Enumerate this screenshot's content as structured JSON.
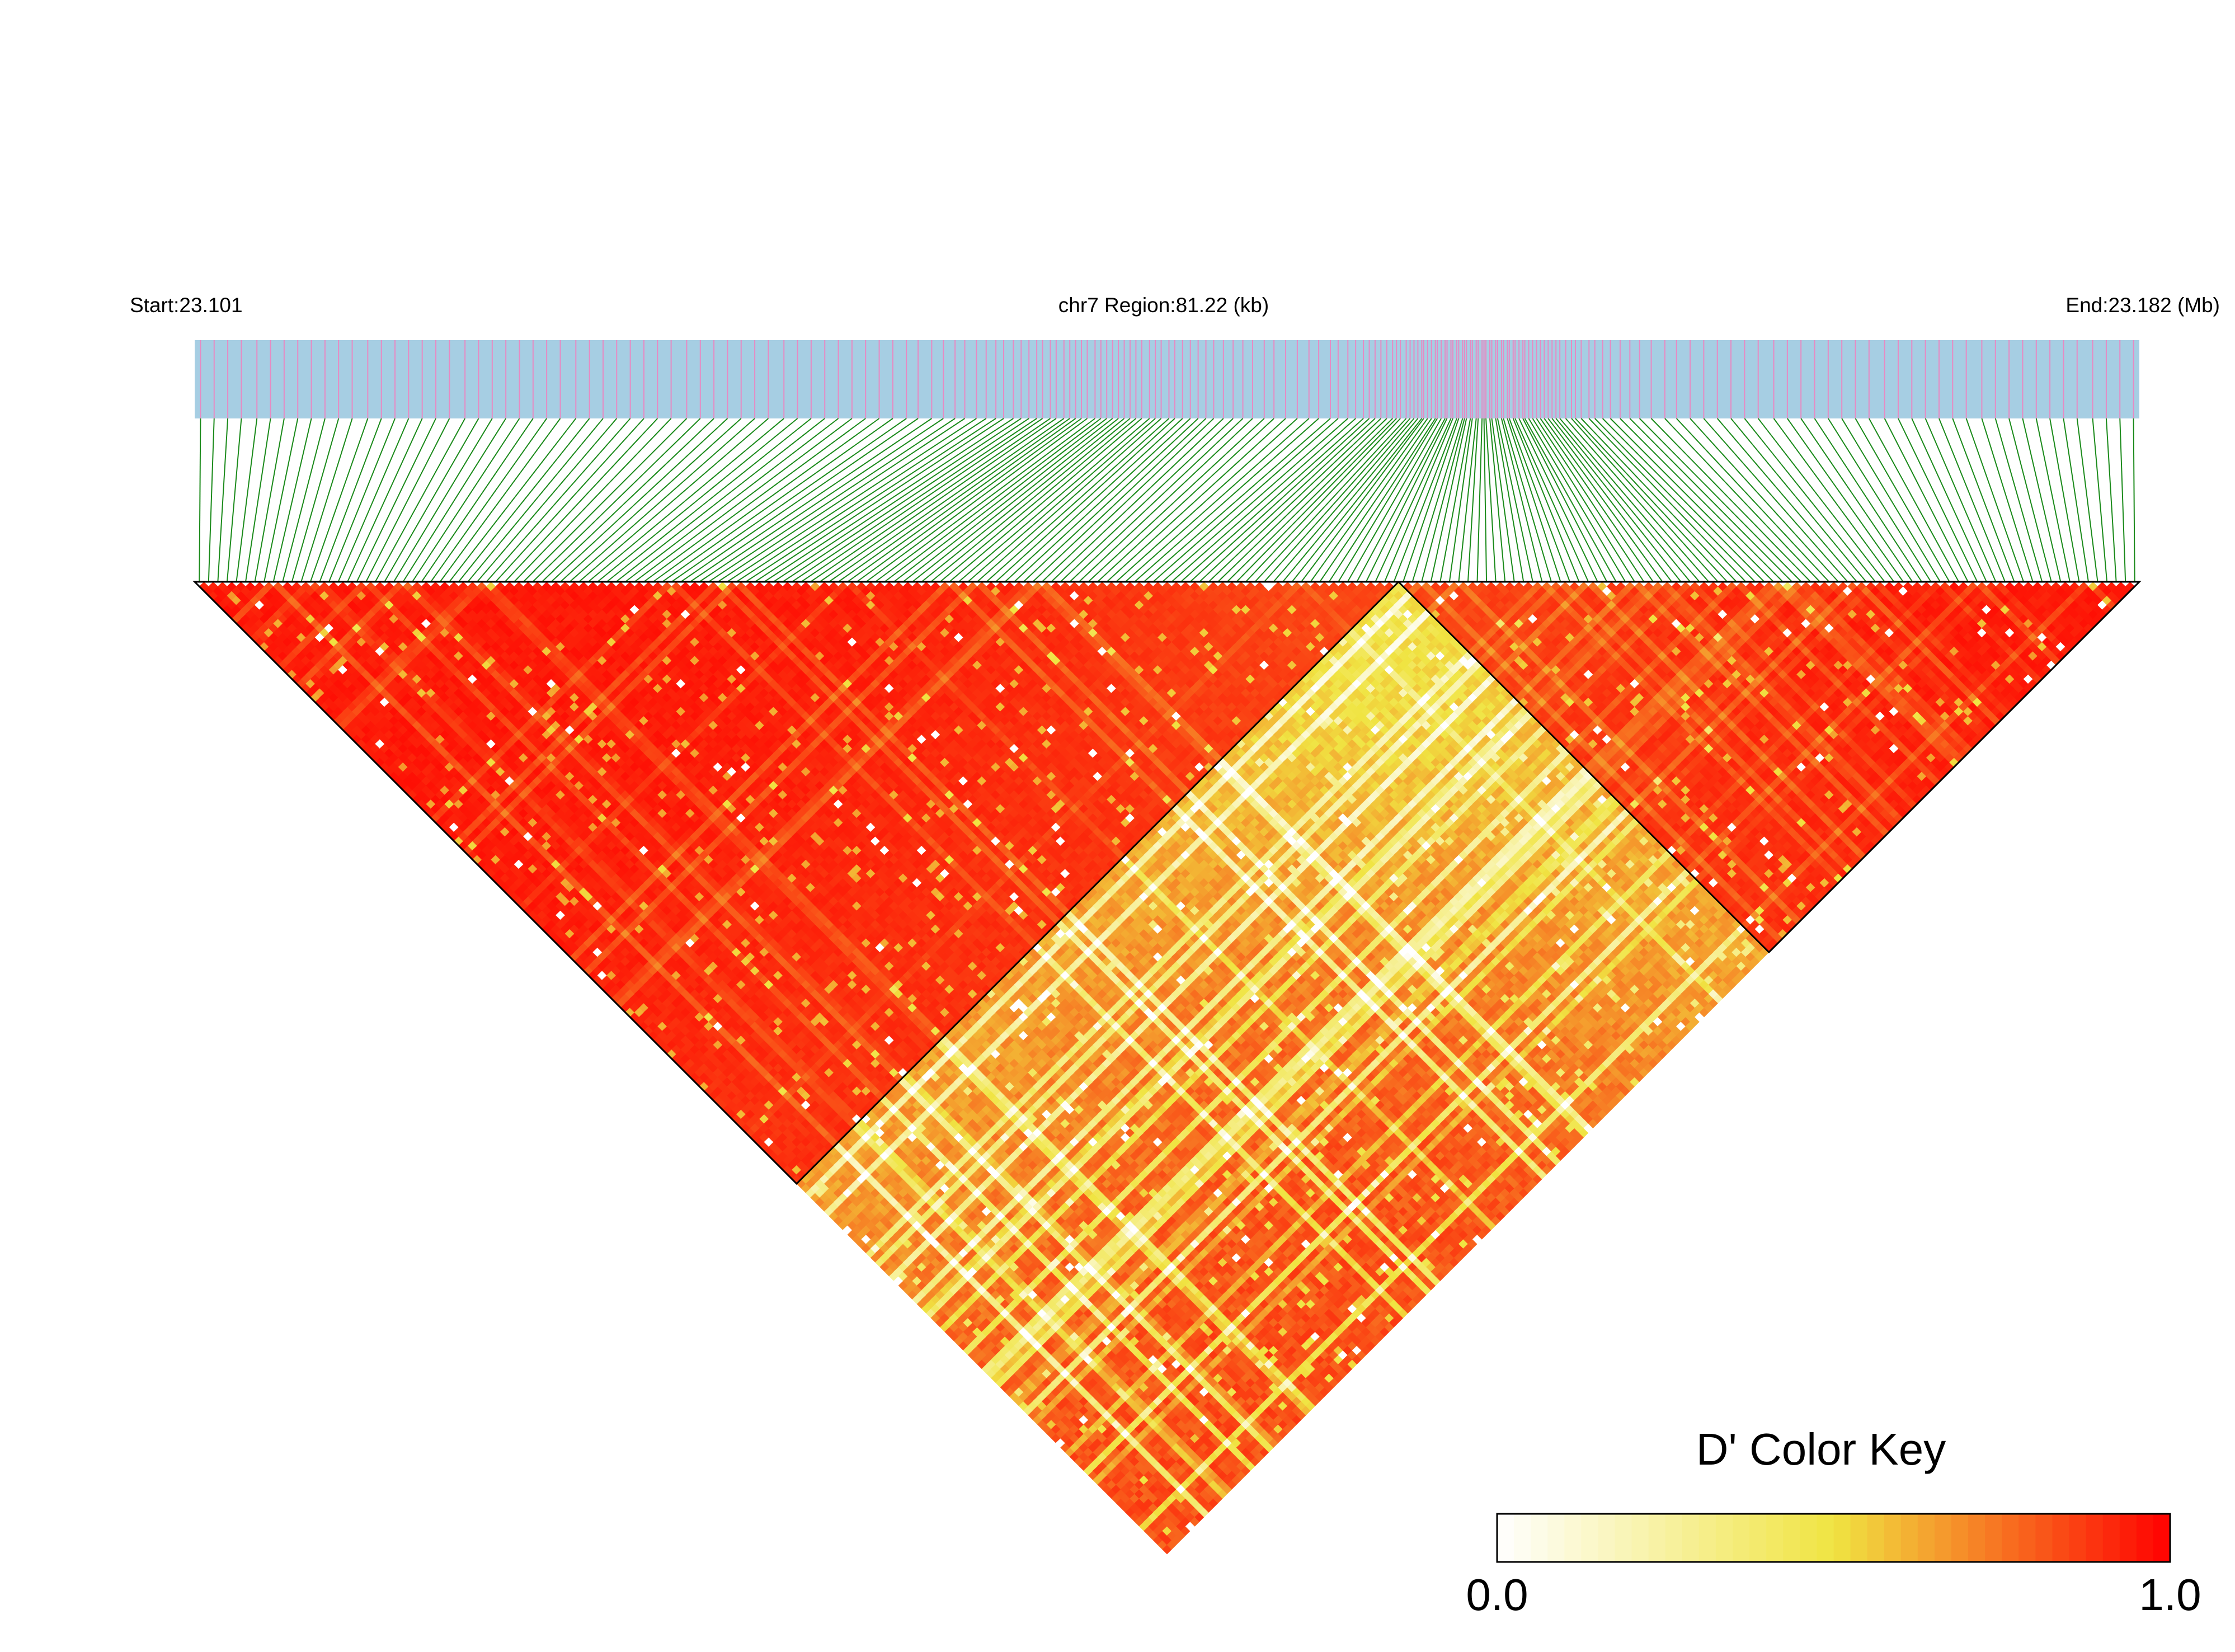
{
  "header": {
    "start_label": "Start:23.101",
    "region_label": "chr7 Region:81.22 (kb)",
    "end_label": "End:23.182 (Mb)"
  },
  "colors": {
    "track_background": "#a6cee3",
    "snp_tick": "#e78ac3",
    "connector_line": "#1a8a1a",
    "block_outline": "#000000",
    "scale_low": "#ffffff",
    "scale_mid": "#f0e442",
    "scale_high": "#ff0000"
  },
  "color_key": {
    "title": "D' Color Key",
    "min_label": "0.0",
    "max_label": "1.0",
    "min": 0.0,
    "max": 1.0
  },
  "chart_data": {
    "type": "heatmap",
    "chromosome": "chr7",
    "region_start_mb": 23.101,
    "region_end_mb": 23.182,
    "region_length_kb": 81.22,
    "snp_count": 210,
    "metric": "D'",
    "color_range": [
      0.0,
      1.0
    ],
    "haplotype_blocks": [
      {
        "first_snp_fraction": 0.0,
        "last_snp_fraction": 0.62
      },
      {
        "first_snp_fraction": 0.62,
        "last_snp_fraction": 1.0
      }
    ]
  }
}
